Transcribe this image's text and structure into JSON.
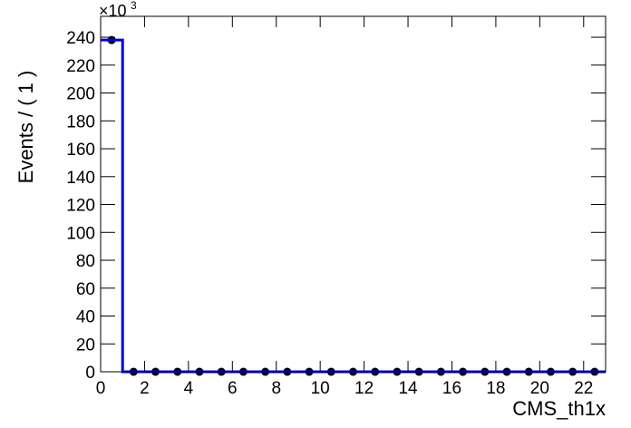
{
  "chart_data": {
    "type": "scatter",
    "x_label": "CMS_th1x",
    "y_label": "Events / ( 1 )",
    "y_multiplier": "×10",
    "y_multiplier_exp": "3",
    "xlim": [
      0,
      23
    ],
    "xticks": [
      0,
      2,
      4,
      6,
      8,
      10,
      12,
      14,
      16,
      18,
      20,
      22
    ],
    "ylim": [
      0,
      255
    ],
    "yticks": [
      0,
      20,
      40,
      60,
      80,
      100,
      120,
      140,
      160,
      180,
      200,
      220,
      240
    ],
    "series": [
      {
        "color": "#000000",
        "x": [
          0.5,
          1.5,
          2.5,
          3.5,
          4.5,
          5.5,
          6.5,
          7.5,
          8.5,
          9.5,
          10.5,
          11.5,
          12.5,
          13.5,
          14.5,
          15.5,
          16.5,
          17.5,
          18.5,
          19.5,
          20.5,
          21.5,
          22.5
        ],
        "values": [
          238,
          0,
          0,
          0,
          0,
          0,
          0,
          0,
          0,
          0,
          0,
          0,
          0,
          0,
          0,
          0,
          0,
          0,
          0,
          0,
          0,
          0,
          0
        ]
      },
      {
        "color": "#0000e6",
        "style": "line",
        "x": [
          0,
          1,
          1,
          23
        ],
        "values": [
          238,
          238,
          0,
          0
        ]
      }
    ]
  }
}
